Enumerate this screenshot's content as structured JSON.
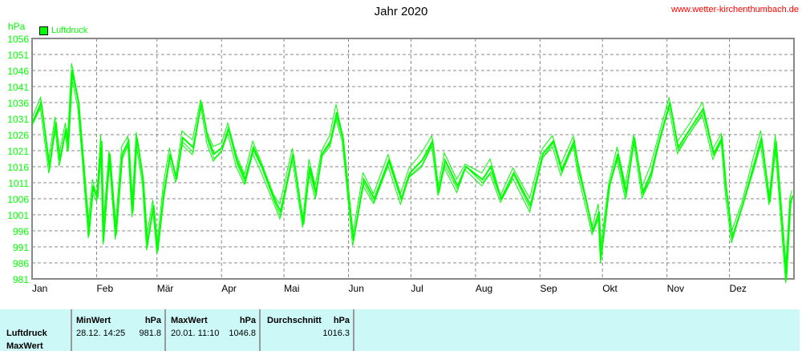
{
  "title": "Jahr 2020",
  "site": "www.wetter-kirchenthumbach.de",
  "chart_data": {
    "type": "line",
    "title": "Jahr 2020",
    "ylabel": "hPa",
    "ylim": [
      981,
      1056
    ],
    "yticks": [
      981,
      986,
      991,
      996,
      1001,
      1006,
      1011,
      1016,
      1021,
      1026,
      1031,
      1036,
      1041,
      1046,
      1051,
      1056
    ],
    "xticks": [
      "Jan",
      "Feb",
      "Mär",
      "Apr",
      "Mai",
      "Jun",
      "Jul",
      "Aug",
      "Sep",
      "Okt",
      "Nov",
      "Dez"
    ],
    "grid": true,
    "legend": "top-left",
    "color": "#00ff00",
    "series": [
      {
        "name": "Luftdruck",
        "points": [
          [
            "2020-01-01",
            1030
          ],
          [
            "2020-01-05",
            1036
          ],
          [
            "2020-01-09",
            1016
          ],
          [
            "2020-01-12",
            1030
          ],
          [
            "2020-01-14",
            1018
          ],
          [
            "2020-01-17",
            1028
          ],
          [
            "2020-01-18",
            1022
          ],
          [
            "2020-01-20",
            1046
          ],
          [
            "2020-01-23",
            1036
          ],
          [
            "2020-01-25",
            1020
          ],
          [
            "2020-01-28",
            996
          ],
          [
            "2020-01-30",
            1010
          ],
          [
            "2020-02-01",
            1006
          ],
          [
            "2020-02-03",
            1024
          ],
          [
            "2020-02-04",
            994
          ],
          [
            "2020-02-07",
            1020
          ],
          [
            "2020-02-10",
            995
          ],
          [
            "2020-02-13",
            1020
          ],
          [
            "2020-02-16",
            1024
          ],
          [
            "2020-02-18",
            1002
          ],
          [
            "2020-02-20",
            1025
          ],
          [
            "2020-02-23",
            1012
          ],
          [
            "2020-02-25",
            992
          ],
          [
            "2020-02-28",
            1004
          ],
          [
            "2020-03-01",
            990
          ],
          [
            "2020-03-04",
            1008
          ],
          [
            "2020-03-07",
            1020
          ],
          [
            "2020-03-10",
            1012
          ],
          [
            "2020-03-13",
            1025
          ],
          [
            "2020-03-18",
            1022
          ],
          [
            "2020-03-22",
            1036
          ],
          [
            "2020-03-25",
            1025
          ],
          [
            "2020-03-28",
            1020
          ],
          [
            "2020-04-01",
            1022
          ],
          [
            "2020-04-04",
            1028
          ],
          [
            "2020-04-08",
            1018
          ],
          [
            "2020-04-12",
            1012
          ],
          [
            "2020-04-16",
            1022
          ],
          [
            "2020-04-20",
            1016
          ],
          [
            "2020-04-26",
            1006
          ],
          [
            "2020-04-29",
            1002
          ],
          [
            "2020-05-05",
            1020
          ],
          [
            "2020-05-10",
            998
          ],
          [
            "2020-05-13",
            1016
          ],
          [
            "2020-05-16",
            1008
          ],
          [
            "2020-05-19",
            1020
          ],
          [
            "2020-05-23",
            1024
          ],
          [
            "2020-05-26",
            1033
          ],
          [
            "2020-05-29",
            1025
          ],
          [
            "2020-06-03",
            993
          ],
          [
            "2020-06-08",
            1012
          ],
          [
            "2020-06-13",
            1006
          ],
          [
            "2020-06-20",
            1018
          ],
          [
            "2020-06-26",
            1006
          ],
          [
            "2020-06-30",
            1014
          ],
          [
            "2020-07-06",
            1018
          ],
          [
            "2020-07-11",
            1024
          ],
          [
            "2020-07-14",
            1008
          ],
          [
            "2020-07-17",
            1018
          ],
          [
            "2020-07-23",
            1010
          ],
          [
            "2020-07-27",
            1016
          ],
          [
            "2020-08-04",
            1012
          ],
          [
            "2020-08-08",
            1016
          ],
          [
            "2020-08-13",
            1006
          ],
          [
            "2020-08-19",
            1014
          ],
          [
            "2020-08-27",
            1004
          ],
          [
            "2020-09-02",
            1020
          ],
          [
            "2020-09-07",
            1024
          ],
          [
            "2020-09-11",
            1015
          ],
          [
            "2020-09-17",
            1024
          ],
          [
            "2020-09-19",
            1016
          ],
          [
            "2020-09-23",
            1005
          ],
          [
            "2020-09-26",
            996
          ],
          [
            "2020-09-29",
            1002
          ],
          [
            "2020-09-30",
            988
          ],
          [
            "2020-10-04",
            1010
          ],
          [
            "2020-10-08",
            1020
          ],
          [
            "2020-10-12",
            1008
          ],
          [
            "2020-10-16",
            1025
          ],
          [
            "2020-10-20",
            1008
          ],
          [
            "2020-10-24",
            1014
          ],
          [
            "2020-10-27",
            1022
          ],
          [
            "2020-11-02",
            1036
          ],
          [
            "2020-11-06",
            1022
          ],
          [
            "2020-11-12",
            1028
          ],
          [
            "2020-11-18",
            1034
          ],
          [
            "2020-11-23",
            1020
          ],
          [
            "2020-11-27",
            1025
          ],
          [
            "2020-11-29",
            1010
          ],
          [
            "2020-12-02",
            994
          ],
          [
            "2020-12-07",
            1004
          ],
          [
            "2020-12-13",
            1018
          ],
          [
            "2020-12-16",
            1025
          ],
          [
            "2020-12-20",
            1005
          ],
          [
            "2020-12-23",
            1024
          ],
          [
            "2020-12-28",
            982
          ],
          [
            "2020-12-30",
            1005
          ],
          [
            "2020-12-31",
            1007
          ]
        ]
      }
    ]
  },
  "table": {
    "row_label": "Luftdruck",
    "row_label2": "MaxWert",
    "min": {
      "header": "MinWert",
      "unit": "hPa",
      "time": "28.12. 14:25",
      "value": "981.8"
    },
    "max": {
      "header": "MaxWert",
      "unit": "hPa",
      "time": "20.01. 11:10",
      "value": "1046.8"
    },
    "avg": {
      "header": "Durchschnitt",
      "unit": "hPa",
      "value": "1016.3"
    }
  }
}
